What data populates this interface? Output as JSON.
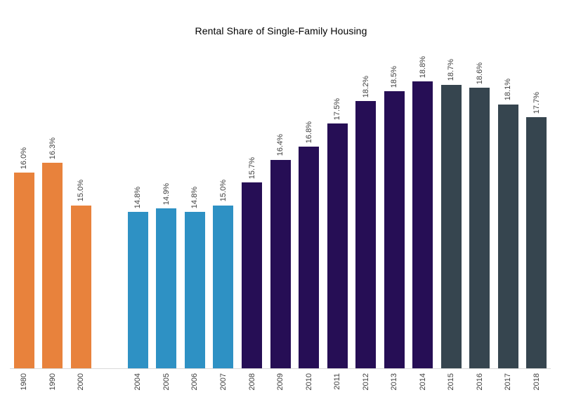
{
  "chart_data": {
    "type": "bar",
    "title": "Rental Share of Single-Family Housing",
    "categories": [
      "1980",
      "1990",
      "2000",
      "2004",
      "2005",
      "2006",
      "2007",
      "2008",
      "2009",
      "2010",
      "2011",
      "2012",
      "2013",
      "2014",
      "2015",
      "2016",
      "2017",
      "2018"
    ],
    "values": [
      16.0,
      16.3,
      15.0,
      14.8,
      14.9,
      14.8,
      15.0,
      15.7,
      16.4,
      16.8,
      17.5,
      18.2,
      18.5,
      18.8,
      18.7,
      18.6,
      18.1,
      17.7
    ],
    "value_labels": [
      "16.0%",
      "16.3%",
      "15.0%",
      "14.8%",
      "14.9%",
      "14.8%",
      "15.0%",
      "15.7%",
      "16.4%",
      "16.8%",
      "17.5%",
      "18.2%",
      "18.5%",
      "18.8%",
      "18.7%",
      "18.6%",
      "18.1%",
      "17.7%"
    ],
    "bar_groups": [
      "era1980s",
      "era1980s",
      "era1980s",
      "era2000s",
      "era2000s",
      "era2000s",
      "era2000s",
      "eraRise",
      "eraRise",
      "eraRise",
      "eraRise",
      "eraRise",
      "eraRise",
      "eraRise",
      "eraRecent",
      "eraRecent",
      "eraRecent",
      "eraRecent"
    ],
    "colors": {
      "era1980s": "#e8823c",
      "era2000s": "#2e91c4",
      "eraRise": "#260e55",
      "eraRecent": "#36454f"
    },
    "gap_after_index": 2,
    "xlabel": "",
    "ylabel": "",
    "ylim": [
      10,
      18.8
    ],
    "grid": false,
    "legend": "none",
    "value_label_rotation": -90,
    "tick_label_rotation": -90,
    "axis_line_color": "#d9d9d9",
    "label_color": "#404040",
    "title_color": "#000000"
  }
}
